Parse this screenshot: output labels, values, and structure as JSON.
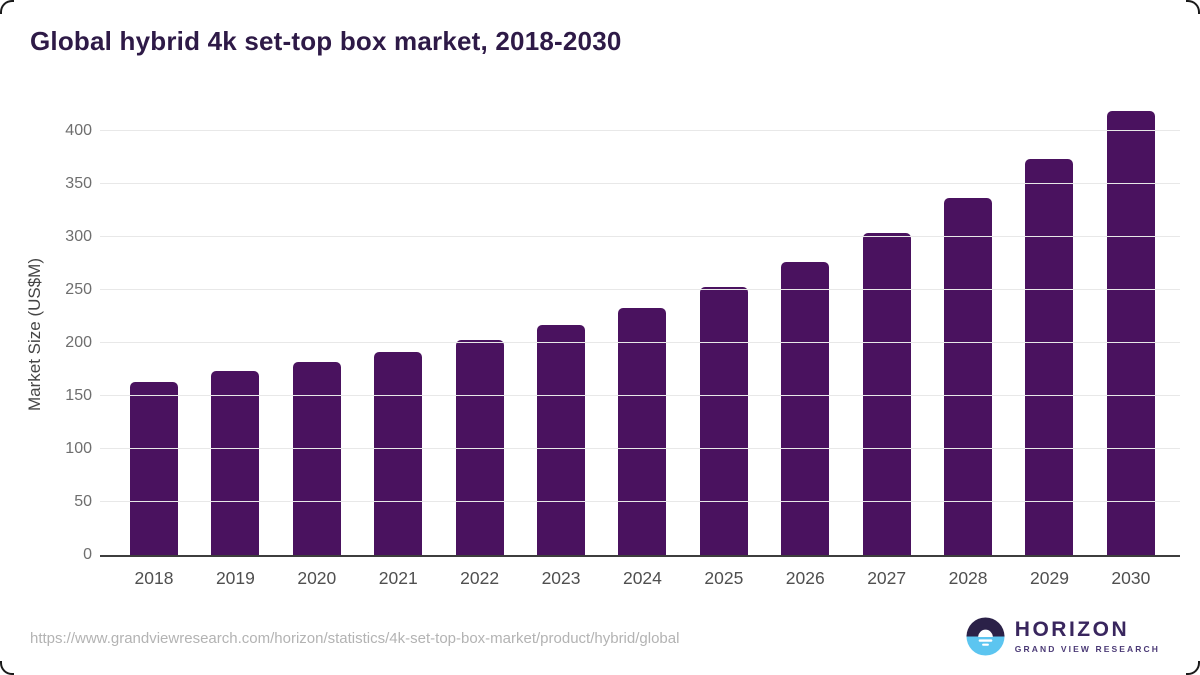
{
  "title": "Global hybrid 4k set-top box market, 2018-2030",
  "source_url": "https://www.grandviewresearch.com/horizon/statistics/4k-set-top-box-market/product/hybrid/global",
  "logo": {
    "name": "HORIZON",
    "subtitle": "GRAND VIEW RESEARCH"
  },
  "colors": {
    "bar": "#4a125f",
    "title_text": "#2e1a47",
    "gridline": "#e8e8e8",
    "axis_line": "#3d3d3d",
    "tick_text": "#6e6e6e",
    "logo_dark": "#2b2148",
    "logo_blue": "#5cc5f0"
  },
  "chart_data": {
    "type": "bar",
    "title": "Global hybrid 4k set-top box market, 2018-2030",
    "categories": [
      "2018",
      "2019",
      "2020",
      "2021",
      "2022",
      "2023",
      "2024",
      "2025",
      "2026",
      "2027",
      "2028",
      "2029",
      "2030"
    ],
    "values": [
      163,
      174,
      182,
      192,
      203,
      217,
      233,
      253,
      277,
      304,
      337,
      374,
      419
    ],
    "xlabel": "",
    "ylabel": "Market Size (US$M)",
    "ylim": [
      0,
      420
    ],
    "yticks": [
      0,
      50,
      100,
      150,
      200,
      250,
      300,
      350,
      400
    ],
    "grid": true,
    "legend": false,
    "bar_color": "#4a125f"
  }
}
